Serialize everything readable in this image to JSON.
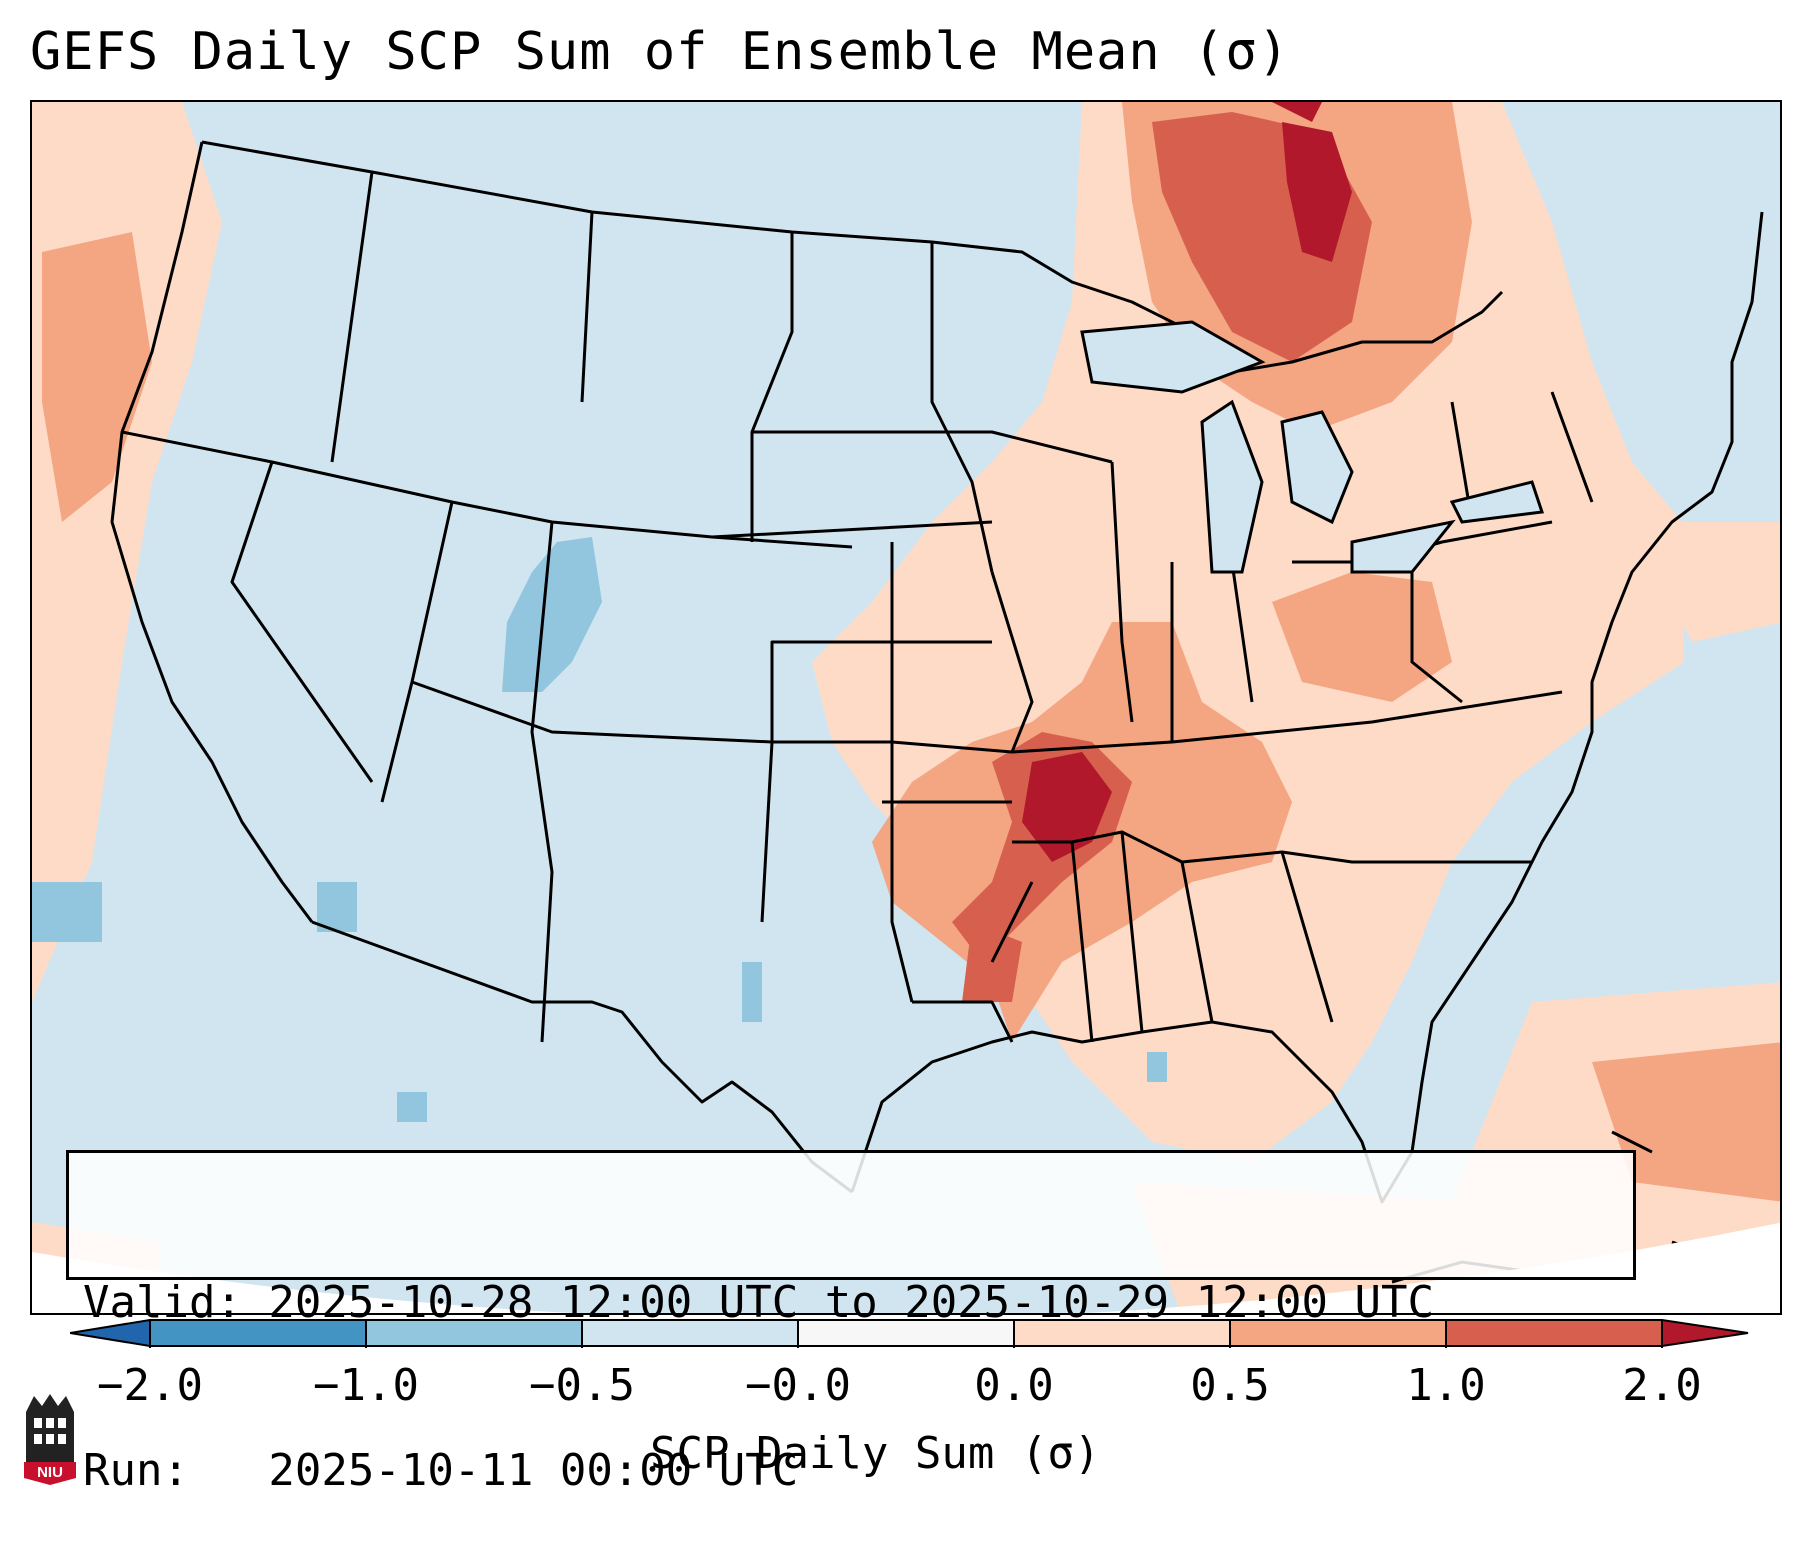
{
  "title": "GEFS Daily SCP Sum of Ensemble Mean (σ)",
  "info": {
    "valid_line": "Valid: 2025-10-28 12:00 UTC to 2025-10-29 12:00 UTC",
    "run_line": "Run:   2025-10-11 00:00 UTC"
  },
  "colorbar": {
    "label": "SCP Daily Sum (σ)",
    "ticks": [
      "−2.0",
      "−1.0",
      "−0.5",
      "−0.0",
      "0.0",
      "0.5",
      "1.0",
      "2.0"
    ],
    "bin_colors": [
      "#2166ac",
      "#4393c3",
      "#92c5de",
      "#d1e5f0",
      "#f7f7f7",
      "#fddbc7",
      "#f4a582",
      "#d6604d",
      "#b2182b"
    ]
  },
  "map": {
    "region": "Continental United States",
    "background_color": "#d1e5f0",
    "hotspot": "Arkansas / Lower Mississippi Valley",
    "secondary_hotspot": "Ontario / Quebec"
  },
  "logo": {
    "text": "NIU"
  }
}
